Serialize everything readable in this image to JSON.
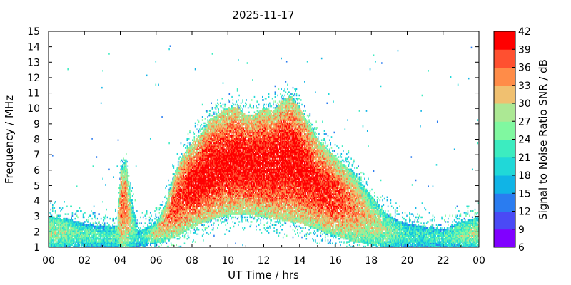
{
  "chart_data": {
    "type": "heatmap",
    "title": "2025-11-17",
    "xlabel": "UT Time / hrs",
    "ylabel": "Frequency / MHz",
    "xlim": [
      0,
      24
    ],
    "ylim": [
      1,
      15
    ],
    "x_ticks": [
      "00",
      "02",
      "04",
      "06",
      "08",
      "10",
      "12",
      "14",
      "16",
      "18",
      "20",
      "22",
      "00"
    ],
    "y_ticks": [
      "1",
      "2",
      "3",
      "4",
      "5",
      "6",
      "7",
      "8",
      "9",
      "10",
      "11",
      "12",
      "13",
      "14",
      "15"
    ],
    "colorbar": {
      "label": "Signal to Noise Ratio SNR / dB",
      "range": [
        6,
        42
      ],
      "ticks": [
        "6",
        "9",
        "12",
        "15",
        "18",
        "21",
        "24",
        "27",
        "30",
        "33",
        "36",
        "39",
        "42"
      ],
      "colors": [
        "#8000ff",
        "#4a4af5",
        "#2a7cf0",
        "#10b4e6",
        "#20d8d8",
        "#3cecc0",
        "#80f8a0",
        "#ace894",
        "#f0c070",
        "#ff8c48",
        "#ff5030",
        "#ff0000"
      ]
    },
    "envelope": {
      "hours": [
        0,
        1,
        2,
        3,
        3.8,
        4.0,
        4.3,
        4.6,
        5.0,
        6.0,
        6.5,
        7.0,
        7.5,
        8.0,
        8.5,
        9.0,
        9.5,
        10.0,
        10.5,
        11.0,
        11.5,
        12.0,
        12.5,
        13.0,
        13.5,
        14.0,
        14.5,
        15.0,
        15.5,
        16.0,
        16.5,
        17.0,
        17.5,
        18.0,
        18.5,
        19.0,
        19.5,
        20.0,
        21.0,
        22.0,
        23.0,
        24.0
      ],
      "fmax_mhz": [
        3.0,
        2.8,
        2.5,
        2.3,
        2.4,
        6.0,
        6.5,
        4.0,
        2.0,
        2.6,
        3.8,
        5.8,
        7.0,
        7.8,
        8.4,
        9.3,
        9.6,
        10.0,
        10.1,
        9.5,
        9.6,
        10.0,
        9.8,
        10.5,
        10.8,
        10.0,
        9.0,
        8.0,
        7.4,
        6.8,
        6.3,
        5.8,
        5.0,
        4.3,
        3.5,
        3.0,
        2.7,
        2.5,
        2.3,
        2.1,
        2.6,
        2.9
      ],
      "fmin_mhz": [
        1.0,
        1.0,
        1.0,
        1.0,
        1.0,
        1.0,
        1.0,
        1.0,
        1.0,
        1.2,
        1.4,
        1.6,
        1.9,
        2.2,
        2.5,
        2.7,
        2.9,
        3.0,
        3.1,
        3.1,
        3.0,
        2.9,
        2.8,
        2.7,
        2.6,
        2.5,
        2.3,
        2.1,
        1.9,
        1.7,
        1.5,
        1.3,
        1.2,
        1.1,
        1.0,
        1.0,
        1.0,
        1.0,
        1.0,
        1.0,
        1.0,
        1.0
      ],
      "peak_snr_db": [
        28,
        26,
        24,
        22,
        24,
        36,
        36,
        28,
        20,
        30,
        34,
        38,
        40,
        41,
        42,
        42,
        42,
        42,
        42,
        42,
        42,
        42,
        42,
        42,
        42,
        42,
        41,
        40,
        40,
        39,
        37,
        35,
        32,
        30,
        28,
        26,
        24,
        22,
        22,
        22,
        26,
        28
      ]
    }
  }
}
